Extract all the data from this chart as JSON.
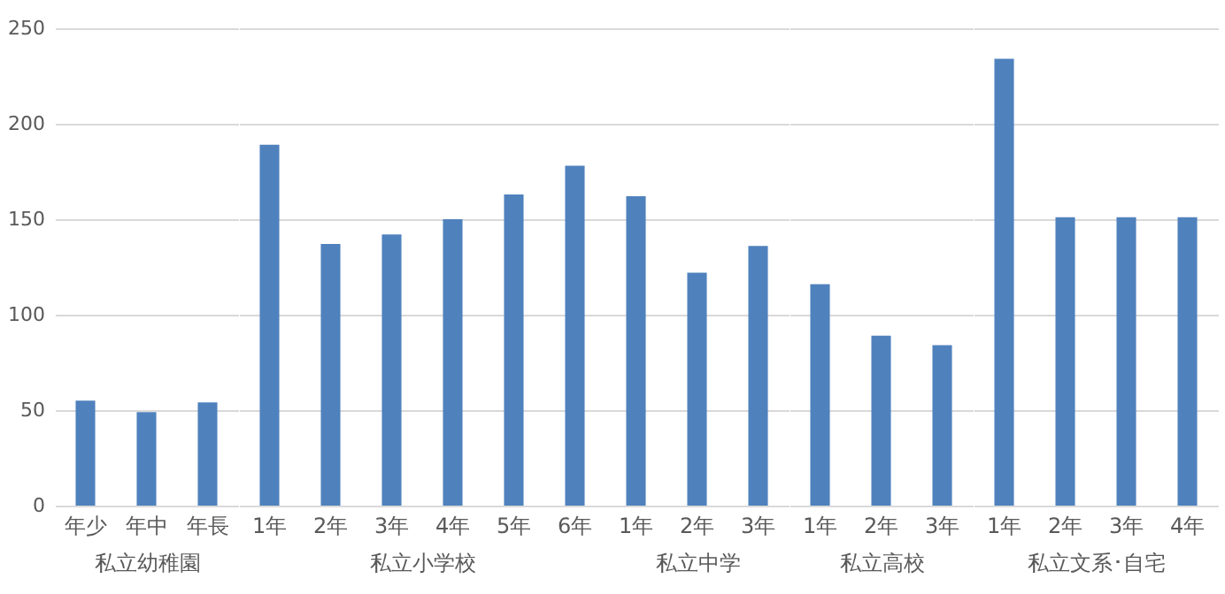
{
  "chart_data": [
    {
      "type": "bar",
      "categories": [
        "年少",
        "年中",
        "年長"
      ],
      "values": [
        55,
        49,
        54
      ],
      "color": "#4f81bd",
      "xlabel": "私立幼稚園",
      "ylim": [
        0,
        250
      ],
      "yticks": [
        0,
        50,
        100,
        150,
        200,
        250
      ],
      "grid": "y"
    },
    {
      "type": "bar",
      "categories": [
        "1年",
        "2年",
        "3年",
        "4年",
        "5年",
        "6年"
      ],
      "values": [
        189,
        137,
        142,
        150,
        163,
        178
      ],
      "color": "#4f81bd",
      "xlabel": "私立小学校",
      "ylim": [
        0,
        250
      ],
      "yticks": [
        0,
        50,
        100,
        150,
        200,
        250
      ],
      "grid": "y",
      "tick_labels": "x"
    },
    {
      "type": "bar",
      "categories": [
        "1年",
        "2年",
        "3年"
      ],
      "values": [
        162,
        122,
        136
      ],
      "color": "#4f81bd",
      "xlabel": "私立中学",
      "ylim": [
        0,
        250
      ],
      "yticks": [
        0,
        50,
        100,
        150,
        200,
        250
      ],
      "grid": "y",
      "tick_labels": "x"
    },
    {
      "type": "bar",
      "categories": [
        "1年",
        "2年",
        "3年"
      ],
      "values": [
        116,
        89,
        84
      ],
      "color": "#4f81bd",
      "xlabel": "私立高校",
      "ylim": [
        0,
        250
      ],
      "yticks": [
        0,
        50,
        100,
        150,
        200,
        250
      ],
      "grid": "y",
      "tick_labels": "x"
    },
    {
      "type": "bar",
      "categories": [
        "1年",
        "2年",
        "3年",
        "4年"
      ],
      "values": [
        234,
        151,
        151,
        151
      ],
      "color": "#4f81bd",
      "xlabel": "私立文系･自宅",
      "ylim": [
        0,
        250
      ],
      "yticks": [
        0,
        50,
        100,
        150,
        200,
        250
      ],
      "grid": "y",
      "tick_labels": "x"
    }
  ]
}
